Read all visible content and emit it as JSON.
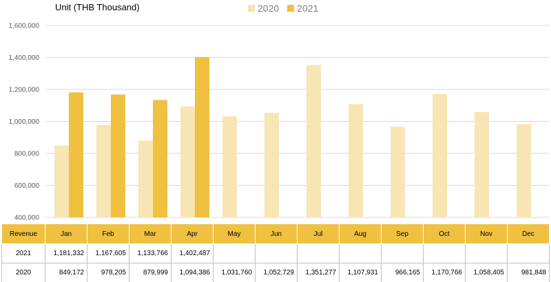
{
  "unit_label": "Unit (THB  Thousand)",
  "colors": {
    "y2020": "#f8e5b4",
    "y2021": "#f0c040",
    "grid": "#d9d9d9",
    "header": "#f0c040"
  },
  "legend": [
    {
      "label": "2020",
      "color": "#f8e5b4"
    },
    {
      "label": "2021",
      "color": "#f0c040"
    }
  ],
  "table": {
    "header_label": "Revenue",
    "months": [
      "Jan",
      "Feb",
      "Mar",
      "Apr",
      "May",
      "Jun",
      "Jul",
      "Aug",
      "Sep",
      "Oct",
      "Nov",
      "Dec"
    ],
    "rows": [
      {
        "label": "2021",
        "values": [
          "1,181,332",
          "1,167,605",
          "1,133,766",
          "1,402,487",
          "",
          "",
          "",
          "",
          "",
          "",
          "",
          ""
        ]
      },
      {
        "label": "2020",
        "values": [
          "849,172",
          "978,205",
          "879,999",
          "1,094,386",
          "1,031,760",
          "1,052,729",
          "1,351,277",
          "1,107,931",
          "966,165",
          "1,170,766",
          "1,058,405",
          "981,848"
        ]
      }
    ]
  },
  "chart_data": {
    "type": "bar",
    "categories": [
      "Jan",
      "Feb",
      "Mar",
      "Apr",
      "May",
      "Jun",
      "Jul",
      "Aug",
      "Sep",
      "Oct",
      "Nov",
      "Dec"
    ],
    "series": [
      {
        "name": "2020",
        "values": [
          849172,
          978205,
          879999,
          1094386,
          1031760,
          1052729,
          1351277,
          1107931,
          966165,
          1170766,
          1058405,
          981848
        ]
      },
      {
        "name": "2021",
        "values": [
          1181332,
          1167605,
          1133766,
          1402487,
          null,
          null,
          null,
          null,
          null,
          null,
          null,
          null
        ]
      }
    ],
    "ylim": [
      400000,
      1600000
    ],
    "yticks": [
      400000,
      600000,
      800000,
      1000000,
      1200000,
      1400000,
      1600000
    ],
    "ytick_labels": [
      "400,000",
      "600,000",
      "800,000",
      "1,000,000",
      "1,200,000",
      "1,400,000",
      "1,600,000"
    ],
    "grid": true,
    "legend_position": "top"
  }
}
